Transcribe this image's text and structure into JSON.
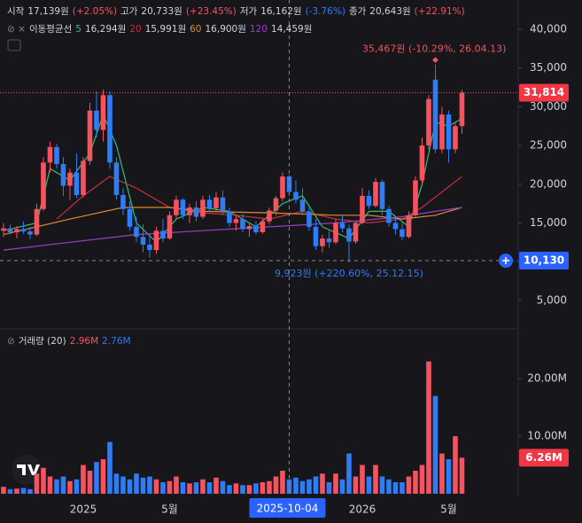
{
  "ohlc_legend": [
    {
      "label": "시작",
      "value": "17,139원",
      "change": "(+2.05%)",
      "color": "#f7525f"
    },
    {
      "label": "고가",
      "value": "20,733원",
      "change": "(+23.45%)",
      "color": "#f7525f"
    },
    {
      "label": "저가",
      "value": "16,162원",
      "change": "(-3.76%)",
      "color": "#2e7cf6"
    },
    {
      "label": "종가",
      "value": "20,643원",
      "change": "(+22.91%)",
      "color": "#f7525f"
    }
  ],
  "ma_legend_title": "이동평균선",
  "chart_data": {
    "type": "candlestick",
    "up_color": "#f7525f",
    "down_color": "#2e7cf6",
    "grid": false,
    "xlim": [
      -0.53,
      77.47
    ],
    "xticks": [
      {
        "value": 12,
        "label": "2025"
      },
      {
        "value": 25,
        "label": "5월"
      },
      {
        "value": 54,
        "label": "2026"
      },
      {
        "value": 67,
        "label": "5월"
      }
    ],
    "ylim": [
      1440,
      43780
    ],
    "yticks": [
      {
        "value": 5000,
        "label": "5,000"
      },
      {
        "value": 10000,
        "label": "10,000"
      },
      {
        "value": 15000,
        "label": "15,000"
      },
      {
        "value": 20000,
        "label": "20,000"
      },
      {
        "value": 25000,
        "label": "25,000"
      },
      {
        "value": 30000,
        "label": "30,000"
      },
      {
        "value": 35000,
        "label": "35,000"
      },
      {
        "value": 40000,
        "label": "40,000"
      }
    ],
    "ohlc": [
      [
        14000,
        15000,
        13200,
        14300
      ],
      [
        14300,
        14800,
        13500,
        13800
      ],
      [
        13800,
        14600,
        13000,
        14200
      ],
      [
        14200,
        15200,
        13600,
        13900
      ],
      [
        13900,
        14500,
        12900,
        13500
      ],
      [
        13500,
        17500,
        13300,
        16800
      ],
      [
        16800,
        23500,
        16500,
        22800
      ],
      [
        22800,
        25500,
        21500,
        24800
      ],
      [
        24800,
        25200,
        22000,
        22600
      ],
      [
        22600,
        23500,
        18500,
        19800
      ],
      [
        19800,
        22000,
        18000,
        21500
      ],
      [
        21500,
        24000,
        18200,
        18600
      ],
      [
        18600,
        23500,
        18300,
        23000
      ],
      [
        23000,
        30500,
        22500,
        29500
      ],
      [
        29500,
        32000,
        26000,
        27000
      ],
      [
        27000,
        32200,
        25500,
        31500
      ],
      [
        31500,
        32000,
        22000,
        22800
      ],
      [
        22800,
        23500,
        18000,
        18600
      ],
      [
        18600,
        19500,
        16000,
        16800
      ],
      [
        16800,
        17800,
        14000,
        14500
      ],
      [
        14500,
        15800,
        12500,
        13200
      ],
      [
        13200,
        14800,
        11200,
        12200
      ],
      [
        12200,
        13500,
        10500,
        11500
      ],
      [
        11500,
        14500,
        11000,
        14000
      ],
      [
        14000,
        15500,
        12500,
        13000
      ],
      [
        13000,
        16500,
        12800,
        16000
      ],
      [
        16000,
        18500,
        15500,
        18000
      ],
      [
        18000,
        18200,
        15500,
        16000
      ],
      [
        16000,
        17500,
        15000,
        17000
      ],
      [
        17000,
        17800,
        15200,
        15800
      ],
      [
        15800,
        18500,
        15500,
        18000
      ],
      [
        18000,
        18600,
        16500,
        16900
      ],
      [
        16900,
        19000,
        16500,
        18300
      ],
      [
        18300,
        19200,
        16000,
        16500
      ],
      [
        16500,
        17000,
        14500,
        15000
      ],
      [
        15000,
        16000,
        14000,
        15500
      ],
      [
        15500,
        16200,
        13800,
        14200
      ],
      [
        14200,
        15000,
        13200,
        14600
      ],
      [
        14600,
        15200,
        13500,
        13800
      ],
      [
        13800,
        15500,
        13600,
        15200
      ],
      [
        15200,
        17000,
        14800,
        16600
      ],
      [
        16600,
        18500,
        16000,
        18200
      ],
      [
        18200,
        21500,
        17800,
        21000
      ],
      [
        21000,
        21200,
        18500,
        19000
      ],
      [
        19000,
        20500,
        17500,
        18000
      ],
      [
        18000,
        19500,
        16000,
        16500
      ],
      [
        16500,
        17000,
        14000,
        14500
      ],
      [
        14500,
        15500,
        11500,
        12000
      ],
      [
        12000,
        13500,
        11200,
        13000
      ],
      [
        13000,
        14000,
        11800,
        12500
      ],
      [
        12500,
        15500,
        12300,
        15000
      ],
      [
        15000,
        16000,
        13800,
        14300
      ],
      [
        14300,
        14800,
        9923,
        12600
      ],
      [
        12600,
        15200,
        12300,
        15000
      ],
      [
        15000,
        19500,
        14800,
        18500
      ],
      [
        18500,
        19200,
        16800,
        17200
      ],
      [
        17200,
        20800,
        17000,
        20300
      ],
      [
        20300,
        20600,
        16000,
        16800
      ],
      [
        16800,
        17200,
        14500,
        15000
      ],
      [
        15000,
        15800,
        13500,
        14200
      ],
      [
        14200,
        15000,
        12800,
        13200
      ],
      [
        13200,
        16500,
        13000,
        16000
      ],
      [
        16000,
        21000,
        15800,
        20500
      ],
      [
        20500,
        26000,
        20000,
        25000
      ],
      [
        25000,
        31500,
        24500,
        31000
      ],
      [
        33500,
        35467,
        24000,
        24500
      ],
      [
        24500,
        30000,
        24000,
        29000
      ],
      [
        29000,
        29500,
        22800,
        24500
      ],
      [
        24500,
        28000,
        24000,
        27500
      ],
      [
        27500,
        32200,
        26500,
        31814
      ]
    ],
    "moving_averages": [
      {
        "name": "5",
        "color": "#2fbf71",
        "value_label": "16,294원",
        "x": [
          0,
          5,
          7,
          10,
          13,
          15,
          17,
          20,
          23,
          26,
          30,
          34,
          38,
          42,
          45,
          48,
          52,
          55,
          58,
          61,
          63,
          65,
          67,
          69
        ],
        "values": [
          14000,
          15000,
          22000,
          20500,
          24000,
          29000,
          25000,
          15000,
          12500,
          15500,
          17000,
          16500,
          14500,
          17500,
          18500,
          14500,
          13000,
          16500,
          16500,
          14500,
          20000,
          28000,
          27500,
          28500
        ]
      },
      {
        "name": "20",
        "color": "#c2303a",
        "value_label": "15,991원",
        "x": [
          8,
          12,
          16,
          20,
          25,
          30,
          35,
          40,
          45,
          50,
          55,
          60,
          63,
          66,
          69
        ],
        "values": [
          15500,
          18500,
          21000,
          19500,
          17000,
          16300,
          16000,
          15500,
          16500,
          15500,
          15000,
          15500,
          17000,
          19000,
          21000
        ]
      },
      {
        "name": "60",
        "color": "#e08b2c",
        "value_label": "16,900원",
        "x": [
          0,
          10,
          18,
          25,
          30,
          40,
          50,
          55,
          60,
          65,
          69
        ],
        "values": [
          13500,
          15500,
          17000,
          17000,
          16500,
          16300,
          16000,
          16000,
          15500,
          16000,
          17000
        ]
      },
      {
        "name": "120",
        "color": "#9c3fc7",
        "value_label": "14,459원",
        "x": [
          0,
          10,
          20,
          30,
          40,
          50,
          60,
          65,
          69
        ],
        "values": [
          11500,
          12500,
          13500,
          14000,
          14500,
          15000,
          15800,
          16500,
          17000
        ]
      }
    ],
    "last_price": {
      "value": 31814,
      "label": "31,814"
    },
    "crosshair": {
      "price": {
        "value": 10130,
        "label": "10,130"
      },
      "date": {
        "value": 43,
        "label": "2025-10-04"
      }
    },
    "high_annotation": "35,467원 (-10.29%, 26.04.13)",
    "low_annotation": "9,923원 (+220.60%, 25.12.15)",
    "volume": {
      "title": "거래량 (20)",
      "legend_values": [
        {
          "text": "2.96M",
          "color": "#f7525f"
        },
        {
          "text": "2.76M",
          "color": "#2e7cf6"
        }
      ],
      "ylim": [
        0,
        28500000
      ],
      "yticks": [
        {
          "value": 10000000,
          "label": "10.00M"
        },
        {
          "value": 20000000,
          "label": "20.00M"
        }
      ],
      "values": [
        1200000,
        800000,
        900000,
        1000000,
        800000,
        3500000,
        4500000,
        3000000,
        2500000,
        3000000,
        2200000,
        2500000,
        5000000,
        4000000,
        5500000,
        6000000,
        9000000,
        3500000,
        3000000,
        2500000,
        3500000,
        2800000,
        3000000,
        2500000,
        2000000,
        2200000,
        3000000,
        2000000,
        1800000,
        2000000,
        2500000,
        2000000,
        2800000,
        2200000,
        1500000,
        1800000,
        1500000,
        1500000,
        1800000,
        2000000,
        2200000,
        3000000,
        4000000,
        2500000,
        2800000,
        2200000,
        2500000,
        3000000,
        3500000,
        2000000,
        3500000,
        2500000,
        7000000,
        3000000,
        5000000,
        3000000,
        5000000,
        3000000,
        2500000,
        2000000,
        2000000,
        3000000,
        4000000,
        5000000,
        23000000,
        17000000,
        7000000,
        6000000,
        10000000,
        6260000
      ],
      "last": {
        "value": 6260000,
        "label": "6.26M"
      }
    }
  }
}
